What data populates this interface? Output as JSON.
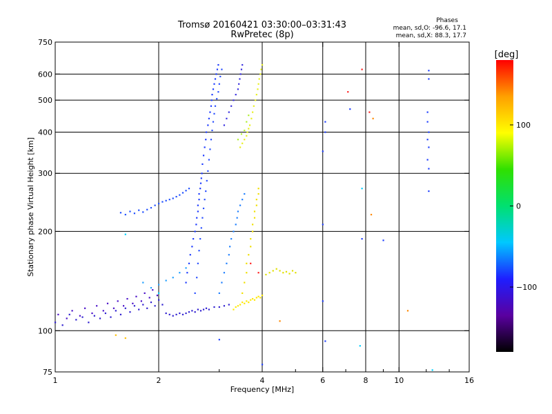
{
  "header": {
    "title": "Tromsø 20160421 03:30:00–03:31:43",
    "subtitle": "RwPretec (8p)"
  },
  "phase_box": {
    "title": "Phases",
    "line_o": "mean, sd,O: -96.6, 17.1",
    "line_x": "mean, sd,X:  88.3, 17.7"
  },
  "colorbar": {
    "unit": "[deg]",
    "ticks": [
      {
        "value": 100,
        "label": "100"
      },
      {
        "value": 0,
        "label": "0"
      },
      {
        "value": -100,
        "label": "−100"
      }
    ],
    "range": [
      -180,
      180
    ],
    "colors": [
      "#000000",
      "#5a00a0",
      "#1e1eff",
      "#00c8ff",
      "#00e070",
      "#30e000",
      "#ffff00",
      "#ffa000",
      "#ff0000"
    ]
  },
  "chart_data": {
    "type": "scatter",
    "xlabel": "Frequency [MHz]",
    "ylabel": "Stationary phase Virtual Height [km]",
    "x_scale": "log",
    "y_scale": "log",
    "xlim": [
      1,
      16
    ],
    "ylim": [
      75,
      750
    ],
    "x_ticks": [
      {
        "value": 1,
        "label": "1"
      },
      {
        "value": 2,
        "label": "2"
      },
      {
        "value": 4,
        "label": "4"
      },
      {
        "value": 6,
        "label": "6"
      },
      {
        "value": 8,
        "label": "8"
      },
      {
        "value": 10,
        "label": "10"
      },
      {
        "value": 16,
        "label": "16"
      }
    ],
    "x_minor_ticks": [
      3,
      5,
      7,
      9,
      12,
      14
    ],
    "y_ticks": [
      {
        "value": 75,
        "label": "75"
      },
      {
        "value": 100,
        "label": "100"
      },
      {
        "value": 200,
        "label": "200"
      },
      {
        "value": 300,
        "label": "300"
      },
      {
        "value": 400,
        "label": "400"
      },
      {
        "value": 500,
        "label": "500"
      },
      {
        "value": 600,
        "label": "600"
      },
      {
        "value": 750,
        "label": "750"
      }
    ],
    "vertical_gridlines": [
      2,
      4,
      6,
      8,
      10
    ],
    "horizontal_gridlines": [
      100,
      200,
      300,
      400,
      500,
      600
    ],
    "grid": true,
    "series": [
      {
        "color": "#3020d0",
        "points": [
          [
            1.0,
            106
          ],
          [
            1.05,
            104
          ],
          [
            1.1,
            112
          ],
          [
            1.15,
            108
          ],
          [
            1.2,
            110
          ],
          [
            1.25,
            106
          ],
          [
            1.3,
            111
          ],
          [
            1.35,
            109
          ],
          [
            1.4,
            113
          ],
          [
            1.45,
            110
          ],
          [
            1.5,
            115
          ],
          [
            1.55,
            112
          ],
          [
            1.6,
            117
          ],
          [
            1.65,
            114
          ],
          [
            1.7,
            119
          ],
          [
            1.75,
            116
          ],
          [
            1.8,
            120
          ],
          [
            1.85,
            117
          ],
          [
            1.9,
            122
          ],
          [
            1.95,
            119
          ],
          [
            2.0,
            124
          ],
          [
            2.05,
            120
          ],
          [
            2.1,
            113
          ],
          [
            2.15,
            112
          ],
          [
            2.2,
            111
          ],
          [
            2.25,
            112
          ],
          [
            2.3,
            113
          ],
          [
            2.35,
            112
          ],
          [
            2.4,
            113
          ],
          [
            2.45,
            114
          ],
          [
            2.5,
            115
          ],
          [
            2.55,
            114
          ],
          [
            2.6,
            116
          ],
          [
            2.65,
            115
          ],
          [
            2.7,
            116
          ],
          [
            2.75,
            117
          ],
          [
            2.8,
            116
          ],
          [
            2.9,
            118
          ],
          [
            3.0,
            118
          ],
          [
            3.1,
            119
          ],
          [
            3.2,
            120
          ]
        ]
      },
      {
        "color": "#4a10c8",
        "points": [
          [
            1.02,
            112
          ],
          [
            1.08,
            109
          ],
          [
            1.12,
            115
          ],
          [
            1.18,
            111
          ],
          [
            1.22,
            117
          ],
          [
            1.28,
            113
          ],
          [
            1.32,
            119
          ],
          [
            1.38,
            115
          ],
          [
            1.42,
            121
          ],
          [
            1.48,
            117
          ],
          [
            1.52,
            123
          ],
          [
            1.58,
            119
          ],
          [
            1.62,
            125
          ],
          [
            1.68,
            121
          ],
          [
            1.72,
            127
          ],
          [
            1.78,
            123
          ],
          [
            1.82,
            130
          ],
          [
            1.88,
            126
          ],
          [
            1.92,
            133
          ],
          [
            1.98,
            128
          ]
        ]
      },
      {
        "color": "#1e3cff",
        "points": [
          [
            2.4,
            140
          ],
          [
            2.42,
            150
          ],
          [
            2.45,
            160
          ],
          [
            2.47,
            170
          ],
          [
            2.5,
            180
          ],
          [
            2.52,
            190
          ],
          [
            2.55,
            200
          ],
          [
            2.57,
            210
          ],
          [
            2.58,
            220
          ],
          [
            2.6,
            230
          ],
          [
            2.6,
            240
          ],
          [
            2.62,
            250
          ],
          [
            2.62,
            260
          ],
          [
            2.64,
            270
          ],
          [
            2.65,
            280
          ],
          [
            2.66,
            290
          ],
          [
            2.67,
            300
          ],
          [
            2.68,
            320
          ],
          [
            2.7,
            340
          ],
          [
            2.72,
            360
          ],
          [
            2.74,
            380
          ],
          [
            2.75,
            400
          ],
          [
            2.78,
            420
          ],
          [
            2.8,
            440
          ],
          [
            2.82,
            460
          ],
          [
            2.84,
            480
          ],
          [
            2.85,
            500
          ],
          [
            2.86,
            520
          ],
          [
            2.88,
            540
          ],
          [
            2.9,
            560
          ],
          [
            2.92,
            580
          ],
          [
            2.94,
            600
          ],
          [
            2.96,
            620
          ],
          [
            2.98,
            640
          ]
        ]
      },
      {
        "color": "#2a50ff",
        "points": [
          [
            2.55,
            130
          ],
          [
            2.58,
            145
          ],
          [
            2.6,
            160
          ],
          [
            2.62,
            175
          ],
          [
            2.64,
            190
          ],
          [
            2.66,
            205
          ],
          [
            2.68,
            220
          ],
          [
            2.7,
            235
          ],
          [
            2.72,
            250
          ],
          [
            2.74,
            265
          ],
          [
            2.76,
            285
          ],
          [
            2.78,
            305
          ],
          [
            2.8,
            330
          ],
          [
            2.82,
            355
          ],
          [
            2.84,
            380
          ],
          [
            2.86,
            405
          ],
          [
            2.88,
            430
          ],
          [
            2.9,
            455
          ],
          [
            2.92,
            480
          ],
          [
            2.95,
            505
          ],
          [
            2.98,
            530
          ],
          [
            3.0,
            560
          ],
          [
            3.02,
            590
          ],
          [
            3.05,
            620
          ]
        ]
      },
      {
        "color": "#3a30e0",
        "points": [
          [
            3.1,
            420
          ],
          [
            3.15,
            440
          ],
          [
            3.2,
            460
          ],
          [
            3.25,
            480
          ],
          [
            3.3,
            500
          ],
          [
            3.35,
            520
          ],
          [
            3.4,
            540
          ],
          [
            3.42,
            560
          ],
          [
            3.44,
            580
          ],
          [
            3.46,
            600
          ],
          [
            3.48,
            620
          ],
          [
            3.5,
            640
          ]
        ]
      },
      {
        "color": "#2050ff",
        "points": [
          [
            1.55,
            228
          ],
          [
            1.6,
            225
          ],
          [
            1.65,
            230
          ],
          [
            1.7,
            227
          ],
          [
            1.75,
            232
          ],
          [
            1.8,
            229
          ],
          [
            1.85,
            233
          ],
          [
            1.9,
            236
          ],
          [
            1.95,
            240
          ],
          [
            2.0,
            243
          ],
          [
            2.05,
            246
          ],
          [
            2.1,
            248
          ],
          [
            2.15,
            250
          ],
          [
            2.2,
            252
          ],
          [
            2.25,
            255
          ],
          [
            2.3,
            258
          ],
          [
            2.35,
            262
          ],
          [
            2.4,
            266
          ],
          [
            2.45,
            270
          ]
        ]
      },
      {
        "color": "#2080ff",
        "points": [
          [
            3.0,
            130
          ],
          [
            3.05,
            140
          ],
          [
            3.1,
            150
          ],
          [
            3.15,
            160
          ],
          [
            3.2,
            170
          ],
          [
            3.22,
            180
          ],
          [
            3.25,
            190
          ],
          [
            3.3,
            200
          ],
          [
            3.35,
            210
          ],
          [
            3.38,
            220
          ],
          [
            3.4,
            230
          ],
          [
            3.45,
            240
          ],
          [
            3.5,
            250
          ],
          [
            3.55,
            260
          ]
        ]
      },
      {
        "color": "#ffe800",
        "points": [
          [
            3.3,
            116
          ],
          [
            3.35,
            118
          ],
          [
            3.4,
            119
          ],
          [
            3.45,
            120
          ],
          [
            3.5,
            122
          ],
          [
            3.55,
            121
          ],
          [
            3.6,
            123
          ],
          [
            3.65,
            122
          ],
          [
            3.7,
            124
          ],
          [
            3.75,
            125
          ],
          [
            3.8,
            124
          ],
          [
            3.85,
            126
          ],
          [
            3.9,
            127
          ],
          [
            3.95,
            126
          ],
          [
            4.0,
            128
          ]
        ]
      },
      {
        "color": "#f0e000",
        "points": [
          [
            3.5,
            130
          ],
          [
            3.55,
            140
          ],
          [
            3.6,
            150
          ],
          [
            3.6,
            160
          ],
          [
            3.65,
            170
          ],
          [
            3.7,
            180
          ],
          [
            3.7,
            190
          ],
          [
            3.75,
            200
          ],
          [
            3.75,
            210
          ],
          [
            3.8,
            220
          ],
          [
            3.8,
            230
          ],
          [
            3.85,
            240
          ],
          [
            3.85,
            250
          ],
          [
            3.9,
            260
          ],
          [
            3.9,
            270
          ]
        ]
      },
      {
        "color": "#e8f020",
        "points": [
          [
            3.45,
            360
          ],
          [
            3.5,
            370
          ],
          [
            3.55,
            380
          ],
          [
            3.6,
            390
          ],
          [
            3.62,
            400
          ],
          [
            3.65,
            410
          ],
          [
            3.68,
            420
          ],
          [
            3.72,
            440
          ],
          [
            3.75,
            460
          ],
          [
            3.78,
            480
          ],
          [
            3.82,
            500
          ],
          [
            3.85,
            520
          ],
          [
            3.88,
            540
          ],
          [
            3.9,
            560
          ],
          [
            3.92,
            580
          ],
          [
            3.95,
            600
          ],
          [
            3.97,
            620
          ],
          [
            4.0,
            640
          ]
        ]
      },
      {
        "color": "#b0f030",
        "points": [
          [
            3.4,
            380
          ],
          [
            3.48,
            395
          ],
          [
            3.55,
            405
          ],
          [
            3.6,
            430
          ],
          [
            3.65,
            450
          ]
        ]
      },
      {
        "color": "#e0e000",
        "points": [
          [
            4.1,
            148
          ],
          [
            4.2,
            150
          ],
          [
            4.3,
            152
          ],
          [
            4.4,
            154
          ],
          [
            4.5,
            152
          ],
          [
            4.6,
            150
          ],
          [
            4.7,
            151
          ],
          [
            4.8,
            149
          ],
          [
            4.9,
            152
          ],
          [
            5.0,
            150
          ]
        ]
      },
      {
        "color": "#20a0ff",
        "points": [
          [
            1.8,
            140
          ],
          [
            1.9,
            135
          ],
          [
            2.0,
            138
          ],
          [
            2.1,
            142
          ],
          [
            2.2,
            145
          ],
          [
            2.3,
            150
          ],
          [
            2.4,
            155
          ]
        ]
      },
      {
        "color": "#ff2020",
        "points": [
          [
            7.8,
            620
          ],
          [
            7.1,
            530
          ],
          [
            8.2,
            460
          ],
          [
            3.9,
            150
          ],
          [
            3.7,
            160
          ]
        ]
      },
      {
        "color": "#ff8800",
        "points": [
          [
            8.4,
            440
          ],
          [
            8.3,
            225
          ],
          [
            10.6,
            115
          ],
          [
            4.5,
            107
          ]
        ]
      },
      {
        "color": "#2040ff",
        "points": [
          [
            12.2,
            615
          ],
          [
            12.2,
            580
          ],
          [
            12.1,
            460
          ],
          [
            12.1,
            430
          ],
          [
            12.2,
            400
          ],
          [
            12.1,
            380
          ],
          [
            12.2,
            360
          ],
          [
            12.1,
            330
          ],
          [
            12.2,
            310
          ],
          [
            12.2,
            265
          ],
          [
            7.2,
            470
          ],
          [
            6.1,
            430
          ],
          [
            6.1,
            400
          ],
          [
            6.0,
            350
          ],
          [
            6.0,
            210
          ],
          [
            6.0,
            123
          ],
          [
            6.1,
            93
          ],
          [
            9.0,
            188
          ],
          [
            3.0,
            94
          ],
          [
            4.0,
            79
          ],
          [
            7.8,
            190
          ]
        ]
      },
      {
        "color": "#00d0ff",
        "points": [
          [
            7.8,
            270
          ],
          [
            7.7,
            90
          ],
          [
            12.5,
            76
          ],
          [
            1.6,
            196
          ],
          [
            2.0,
            130
          ]
        ]
      },
      {
        "color": "#ffc000",
        "points": [
          [
            1.6,
            95
          ],
          [
            1.5,
            97
          ]
        ]
      }
    ]
  }
}
